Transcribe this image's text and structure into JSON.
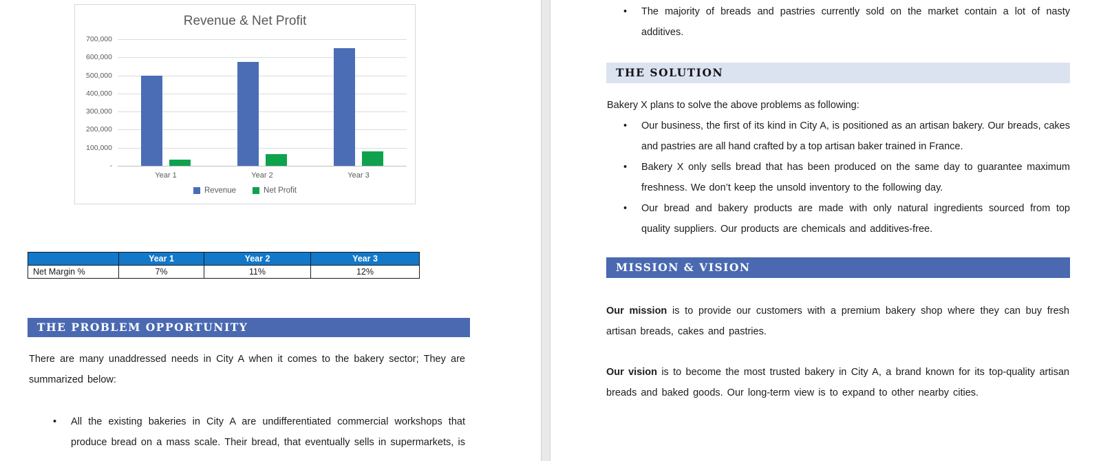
{
  "colors": {
    "section_heading_bg": "#4A69B1",
    "section_heading_light_bg": "#DCE3F0",
    "table_header_bg": "#1278CA",
    "revenue_bar": "#4A6DB5",
    "net_profit_bar": "#0FA24E",
    "chart_text": "#595959"
  },
  "chart_data": {
    "type": "bar",
    "title": "Revenue & Net Profit",
    "categories": [
      "Year 1",
      "Year 2",
      "Year 3"
    ],
    "series": [
      {
        "name": "Revenue",
        "color": "#4A6DB5",
        "values": [
          500000,
          575000,
          650000
        ]
      },
      {
        "name": "Net Profit",
        "color": "#0FA24E",
        "values": [
          35000,
          63000,
          78000
        ]
      }
    ],
    "ylim": [
      0,
      700000
    ],
    "ytick_interval": 100000,
    "ytick_labels": [
      "700,000",
      "600,000",
      "500,000",
      "400,000",
      "300,000",
      "200,000",
      "100,000",
      "-"
    ],
    "grid": true,
    "legend_position": "bottom"
  },
  "page_left": {
    "table": {
      "headers": [
        "",
        "Year 1",
        "Year 2",
        "Year 3"
      ],
      "rows": [
        [
          "Net Margin %",
          "7%",
          "11%",
          "12%"
        ]
      ]
    },
    "problem_heading": "THE PROBLEM OPPORTUNITY",
    "problem_intro": "There are many unaddressed needs in City A when it comes to the bakery sector; They are summarized below:",
    "problem_bullets": [
      "All the existing bakeries in City A are undifferentiated commercial workshops that produce bread on a mass scale. Their bread, that eventually sells in supermarkets, is"
    ]
  },
  "page_right": {
    "carryover_bullets": [
      "The majority of breads and pastries currently sold on the market contain a lot of nasty additives."
    ],
    "solution_heading": "THE SOLUTION",
    "solution_intro": "Bakery X plans to solve the above problems as following:",
    "solution_bullets": [
      "Our business, the first of its kind in City A, is positioned as an artisan bakery. Our breads, cakes and pastries are all hand crafted by a top artisan baker trained in France.",
      "Bakery X only sells bread that has been produced on the same day to guarantee maximum freshness. We don’t keep the unsold inventory to the following day.",
      "Our bread and bakery products are made with only natural ingredients sourced from top quality suppliers. Our products are chemicals and additives-free."
    ],
    "mission_heading": "MISSION & VISION",
    "mission": {
      "bold": "Our mission",
      "rest": " is to provide our customers with a premium bakery shop where they can buy fresh artisan breads, cakes and pastries."
    },
    "vision": {
      "bold": "Our vision",
      "rest": " is to become the most trusted bakery in City A, a brand known for its top-quality artisan breads and baked goods. Our long-term view is to expand to other nearby cities."
    }
  }
}
